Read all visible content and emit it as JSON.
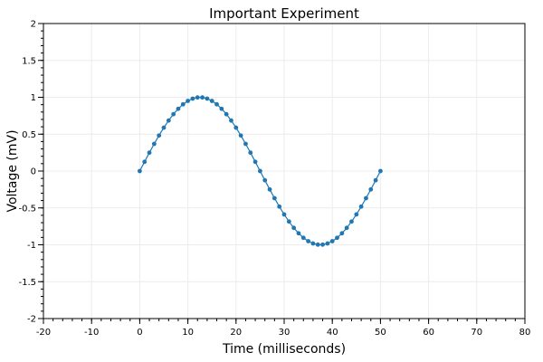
{
  "chart_data": {
    "type": "line",
    "title": "Important Experiment",
    "xlabel": "Time (milliseconds)",
    "ylabel": "Voltage (mV)",
    "xlim": [
      -20,
      80
    ],
    "ylim": [
      -2,
      2
    ],
    "x_ticks": [
      -20,
      -10,
      0,
      10,
      20,
      30,
      40,
      50,
      60,
      70,
      80
    ],
    "y_ticks": [
      -2,
      -1.5,
      -1,
      -0.5,
      0,
      0.5,
      1,
      1.5,
      2
    ],
    "grid": true,
    "series": [
      {
        "color": "#1f77b4",
        "markers": true,
        "x": [
          0,
          1,
          2,
          3,
          4,
          5,
          6,
          7,
          8,
          9,
          10,
          11,
          12,
          13,
          14,
          15,
          16,
          17,
          18,
          19,
          20,
          21,
          22,
          23,
          24,
          25,
          26,
          27,
          28,
          29,
          30,
          31,
          32,
          33,
          34,
          35,
          36,
          37,
          38,
          39,
          40,
          41,
          42,
          43,
          44,
          45,
          46,
          47,
          48,
          49,
          50
        ],
        "y": [
          0,
          0.125,
          0.249,
          0.368,
          0.482,
          0.588,
          0.685,
          0.771,
          0.844,
          0.905,
          0.951,
          0.982,
          0.998,
          0.998,
          0.982,
          0.951,
          0.905,
          0.844,
          0.771,
          0.685,
          0.588,
          0.482,
          0.368,
          0.249,
          0.125,
          0,
          -0.125,
          -0.249,
          -0.368,
          -0.482,
          -0.588,
          -0.685,
          -0.771,
          -0.844,
          -0.905,
          -0.951,
          -0.982,
          -0.998,
          -0.998,
          -0.982,
          -0.951,
          -0.905,
          -0.844,
          -0.771,
          -0.685,
          -0.588,
          -0.482,
          -0.368,
          -0.249,
          -0.125,
          0
        ]
      }
    ]
  }
}
